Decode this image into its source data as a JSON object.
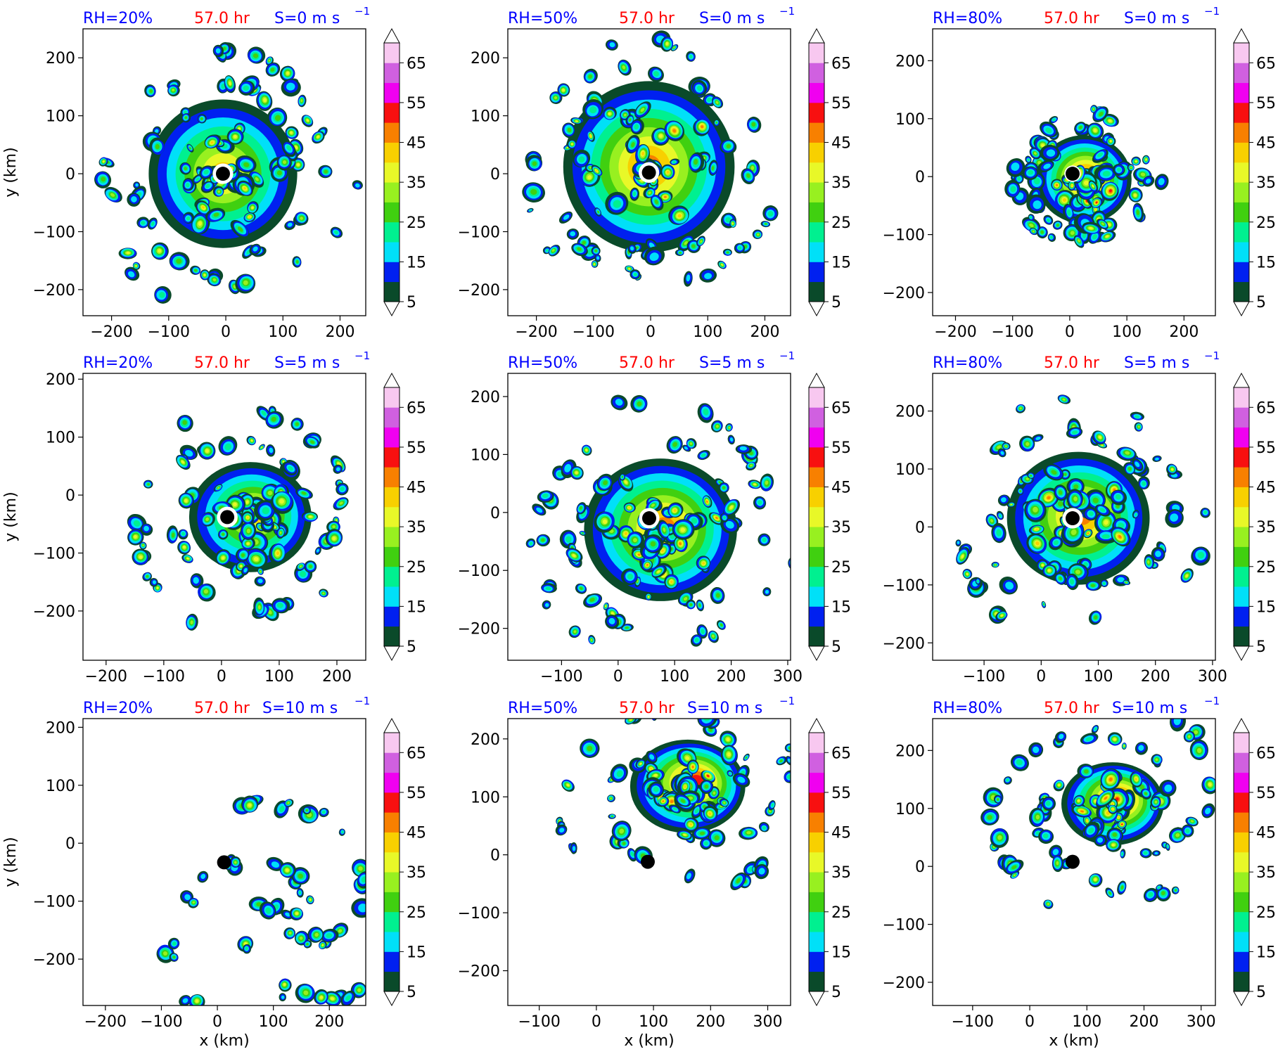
{
  "figure": {
    "x_axis_label": "x (km)",
    "y_axis_label": "y (km)",
    "colorbar_ticks": [
      "5",
      "15",
      "25",
      "35",
      "45",
      "55",
      "65"
    ],
    "colorbar_levels": [
      5,
      10,
      15,
      20,
      25,
      30,
      35,
      40,
      45,
      50,
      55,
      60,
      65,
      70
    ],
    "colorbar_colors": [
      "#0a4a2a",
      "#0020f0",
      "#00e0f8",
      "#00f090",
      "#40d010",
      "#98f020",
      "#e8f828",
      "#f8d000",
      "#f88000",
      "#f81010",
      "#f000f0",
      "#d060e0",
      "#f8c8f0"
    ],
    "colors": {
      "rh_label": "#0000ff",
      "time_label": "#ff0000",
      "shear_label": "#0000ff"
    }
  },
  "chart_data": [
    {
      "type": "heatmap",
      "row": 0,
      "col": 0,
      "rh": "RH=20%",
      "time": "57.0 hr",
      "shear": "S=0 m s",
      "shear_exp": "−1",
      "center_km": [
        -5,
        0
      ],
      "xlim": [
        -250,
        245
      ],
      "ylim": [
        -245,
        250
      ],
      "xticks": [
        -200,
        -100,
        0,
        100,
        200
      ],
      "yticks": [
        -200,
        -100,
        0,
        100,
        200
      ],
      "xtick_labels": [
        "−200",
        "−100",
        "0",
        "100",
        "200"
      ],
      "ytick_labels": [
        "−200",
        "−100",
        "0",
        "100",
        "200"
      ],
      "show_ylabel": true,
      "show_xlabel": false,
      "storm": {
        "core_radius_km": 130,
        "outer_radius_km": 230,
        "peak_level": 8,
        "eye_km": 10,
        "asymmetry": 0,
        "shift_km": [
          0,
          0
        ]
      }
    },
    {
      "type": "heatmap",
      "row": 0,
      "col": 1,
      "rh": "RH=50%",
      "time": "57.0 hr",
      "shear": "S=0 m s",
      "shear_exp": "−1",
      "center_km": [
        -3,
        2
      ],
      "xlim": [
        -250,
        245
      ],
      "ylim": [
        -245,
        250
      ],
      "xticks": [
        -200,
        -100,
        0,
        100,
        200
      ],
      "yticks": [
        -200,
        -100,
        0,
        100,
        200
      ],
      "xtick_labels": [
        "−200",
        "−100",
        "0",
        "100",
        "200"
      ],
      "ytick_labels": [
        "−200",
        "−100",
        "0",
        "100",
        "200"
      ],
      "show_ylabel": false,
      "show_xlabel": false,
      "storm": {
        "core_radius_km": 150,
        "outer_radius_km": 230,
        "peak_level": 9,
        "eye_km": 10,
        "asymmetry": 0,
        "shift_km": [
          0,
          10
        ]
      }
    },
    {
      "type": "heatmap",
      "row": 0,
      "col": 2,
      "rh": "RH=80%",
      "time": "57.0 hr",
      "shear": "S=0 m s",
      "shear_exp": "−1",
      "center_km": [
        5,
        5
      ],
      "xlim": [
        -240,
        255
      ],
      "ylim": [
        -240,
        255
      ],
      "xticks": [
        -200,
        -100,
        0,
        100,
        200
      ],
      "yticks": [
        -200,
        -100,
        0,
        100,
        200
      ],
      "xtick_labels": [
        "−200",
        "−100",
        "0",
        "100",
        "200"
      ],
      "ytick_labels": [
        "−200",
        "−100",
        "0",
        "100",
        "200"
      ],
      "show_ylabel": false,
      "show_xlabel": false,
      "storm": {
        "core_radius_km": 80,
        "outer_radius_km": 130,
        "peak_level": 10,
        "eye_km": 8,
        "asymmetry": 0.2,
        "shift_km": [
          20,
          -10
        ]
      }
    },
    {
      "type": "heatmap",
      "row": 1,
      "col": 0,
      "rh": "RH=20%",
      "time": "57.0 hr",
      "shear": "S=5 m s",
      "shear_exp": "−1",
      "center_km": [
        10,
        -38
      ],
      "xlim": [
        -240,
        250
      ],
      "ylim": [
        -285,
        210
      ],
      "xticks": [
        -200,
        -100,
        0,
        100,
        200
      ],
      "yticks": [
        -200,
        -100,
        0,
        100,
        200
      ],
      "xtick_labels": [
        "−200",
        "−100",
        "0",
        "100",
        "200"
      ],
      "ytick_labels": [
        "−200",
        "−100",
        "0",
        "100",
        "200"
      ],
      "show_ylabel": true,
      "show_xlabel": false,
      "storm": {
        "core_radius_km": 100,
        "outer_radius_km": 220,
        "peak_level": 8,
        "eye_km": 10,
        "asymmetry": 0.3,
        "shift_km": [
          40,
          0
        ]
      }
    },
    {
      "type": "heatmap",
      "row": 1,
      "col": 1,
      "rh": "RH=50%",
      "time": "57.0 hr",
      "shear": "S=5 m s",
      "shear_exp": "−1",
      "center_km": [
        55,
        -10
      ],
      "xlim": [
        -195,
        305
      ],
      "ylim": [
        -255,
        240
      ],
      "xticks": [
        -100,
        0,
        100,
        200,
        300
      ],
      "yticks": [
        -200,
        -100,
        0,
        100,
        200
      ],
      "xtick_labels": [
        "−100",
        "0",
        "100",
        "200",
        "300"
      ],
      "ytick_labels": [
        "−200",
        "−100",
        "0",
        "100",
        "200"
      ],
      "show_ylabel": false,
      "show_xlabel": false,
      "storm": {
        "core_radius_km": 130,
        "outer_radius_km": 250,
        "peak_level": 9,
        "eye_km": 10,
        "asymmetry": 0.2,
        "shift_km": [
          20,
          -20
        ]
      }
    },
    {
      "type": "heatmap",
      "row": 1,
      "col": 2,
      "rh": "RH=80%",
      "time": "57.0 hr",
      "shear": "S=5 m s",
      "shear_exp": "−1",
      "center_km": [
        55,
        15
      ],
      "xlim": [
        -190,
        305
      ],
      "ylim": [
        -230,
        265
      ],
      "xticks": [
        -100,
        0,
        100,
        200,
        300
      ],
      "yticks": [
        -200,
        -100,
        0,
        100,
        200
      ],
      "xtick_labels": [
        "−100",
        "0",
        "100",
        "200",
        "300"
      ],
      "ytick_labels": [
        "−200",
        "−100",
        "0",
        "100",
        "200"
      ],
      "show_ylabel": false,
      "show_xlabel": false,
      "storm": {
        "core_radius_km": 120,
        "outer_radius_km": 230,
        "peak_level": 9,
        "eye_km": 10,
        "asymmetry": 0.2,
        "shift_km": [
          10,
          0
        ]
      }
    },
    {
      "type": "heatmap",
      "row": 2,
      "col": 0,
      "rh": "RH=20%",
      "time": "57.0 hr",
      "shear": "S=10 m s",
      "shear_exp": "−1",
      "center_km": [
        12,
        -33
      ],
      "xlim": [
        -240,
        265
      ],
      "ylim": [
        -280,
        215
      ],
      "xticks": [
        -200,
        -100,
        0,
        100,
        200
      ],
      "yticks": [
        -200,
        -100,
        0,
        100,
        200
      ],
      "xtick_labels": [
        "−200",
        "−100",
        "0",
        "100",
        "200"
      ],
      "ytick_labels": [
        "−200",
        "−100",
        "0",
        "100",
        "200"
      ],
      "show_ylabel": true,
      "show_xlabel": true,
      "storm": {
        "core_radius_km": 0,
        "outer_radius_km": 260,
        "peak_level": 8,
        "eye_km": 0,
        "asymmetry": 0.6,
        "shift_km": [
          110,
          -90
        ]
      }
    },
    {
      "type": "heatmap",
      "row": 2,
      "col": 1,
      "rh": "RH=50%",
      "time": "57.0 hr",
      "shear": "S=10 m s",
      "shear_exp": "−1",
      "center_km": [
        90,
        -12
      ],
      "xlim": [
        -155,
        340
      ],
      "ylim": [
        -260,
        235
      ],
      "xticks": [
        -100,
        0,
        100,
        200,
        300
      ],
      "yticks": [
        -200,
        -100,
        0,
        100,
        200
      ],
      "xtick_labels": [
        "−100",
        "0",
        "100",
        "200",
        "300"
      ],
      "ytick_labels": [
        "−200",
        "−100",
        "0",
        "100",
        "200"
      ],
      "show_ylabel": false,
      "show_xlabel": true,
      "storm": {
        "core_radius_km": 90,
        "outer_radius_km": 260,
        "peak_level": 10,
        "eye_km": 0,
        "asymmetry": 0.6,
        "shift_km": [
          70,
          130
        ]
      }
    },
    {
      "type": "heatmap",
      "row": 2,
      "col": 2,
      "rh": "RH=80%",
      "time": "57.0 hr",
      "shear": "S=10 m s",
      "shear_exp": "−1",
      "center_km": [
        75,
        8
      ],
      "xlim": [
        -170,
        325
      ],
      "ylim": [
        -240,
        255
      ],
      "xticks": [
        -100,
        0,
        100,
        200,
        300
      ],
      "yticks": [
        -200,
        -100,
        0,
        100,
        200
      ],
      "xtick_labels": [
        "−100",
        "0",
        "100",
        "200",
        "300"
      ],
      "ytick_labels": [
        "−200",
        "−100",
        "0",
        "100",
        "200"
      ],
      "show_ylabel": false,
      "show_xlabel": true,
      "storm": {
        "core_radius_km": 80,
        "outer_radius_km": 250,
        "peak_level": 10,
        "eye_km": 0,
        "asymmetry": 0.6,
        "shift_km": [
          70,
          100
        ]
      }
    }
  ]
}
